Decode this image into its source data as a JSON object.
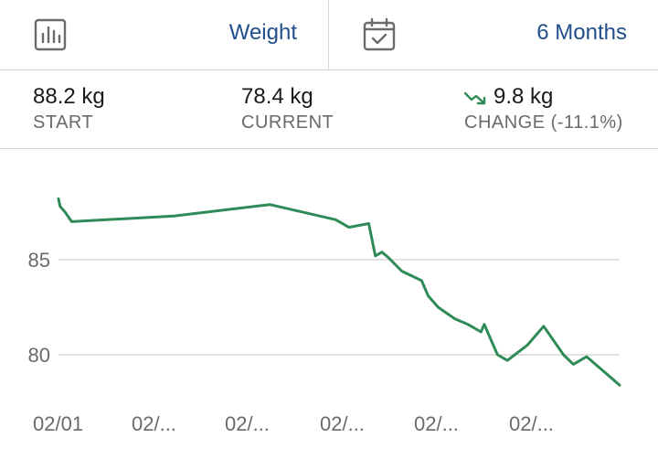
{
  "header": {
    "metric_label": "Weight",
    "range_label": "6 Months",
    "metric_icon": "bar-chart-icon",
    "range_icon": "calendar-check-icon"
  },
  "stats": {
    "start": {
      "value": "88.2 kg",
      "label": "START"
    },
    "current": {
      "value": "78.4 kg",
      "label": "CURRENT"
    },
    "change": {
      "value": "9.8 kg",
      "label": "CHANGE (-11.1%)",
      "icon": "trending-down-icon"
    }
  },
  "colors": {
    "accent": "#1f4e8c",
    "line": "#2e8b57",
    "grid": "#d0d0d0",
    "muted": "#6a6a6a"
  },
  "chart_data": {
    "type": "line",
    "y_ticks": [
      85,
      80
    ],
    "x_tick_labels": [
      "02/01",
      "02/...",
      "02/...",
      "02/...",
      "02/...",
      "02/..."
    ],
    "ylim": [
      78,
      90
    ],
    "grid": "horizontal",
    "series": [
      {
        "x": [
          0,
          0.5,
          2,
          4,
          35,
          64,
          84,
          88,
          94,
          96,
          98,
          100,
          104,
          110,
          112,
          115,
          120,
          124,
          128,
          129,
          131,
          133,
          136,
          142,
          147,
          153,
          156,
          160,
          166,
          170
        ],
        "y": [
          88.2,
          87.8,
          87.5,
          87.0,
          87.3,
          87.9,
          87.1,
          86.7,
          86.9,
          85.2,
          85.4,
          85.1,
          84.4,
          83.9,
          83.1,
          82.5,
          81.9,
          81.6,
          81.2,
          81.6,
          80.8,
          80.0,
          79.7,
          80.5,
          81.5,
          80.0,
          79.5,
          79.9,
          79.0,
          78.4
        ]
      }
    ]
  }
}
